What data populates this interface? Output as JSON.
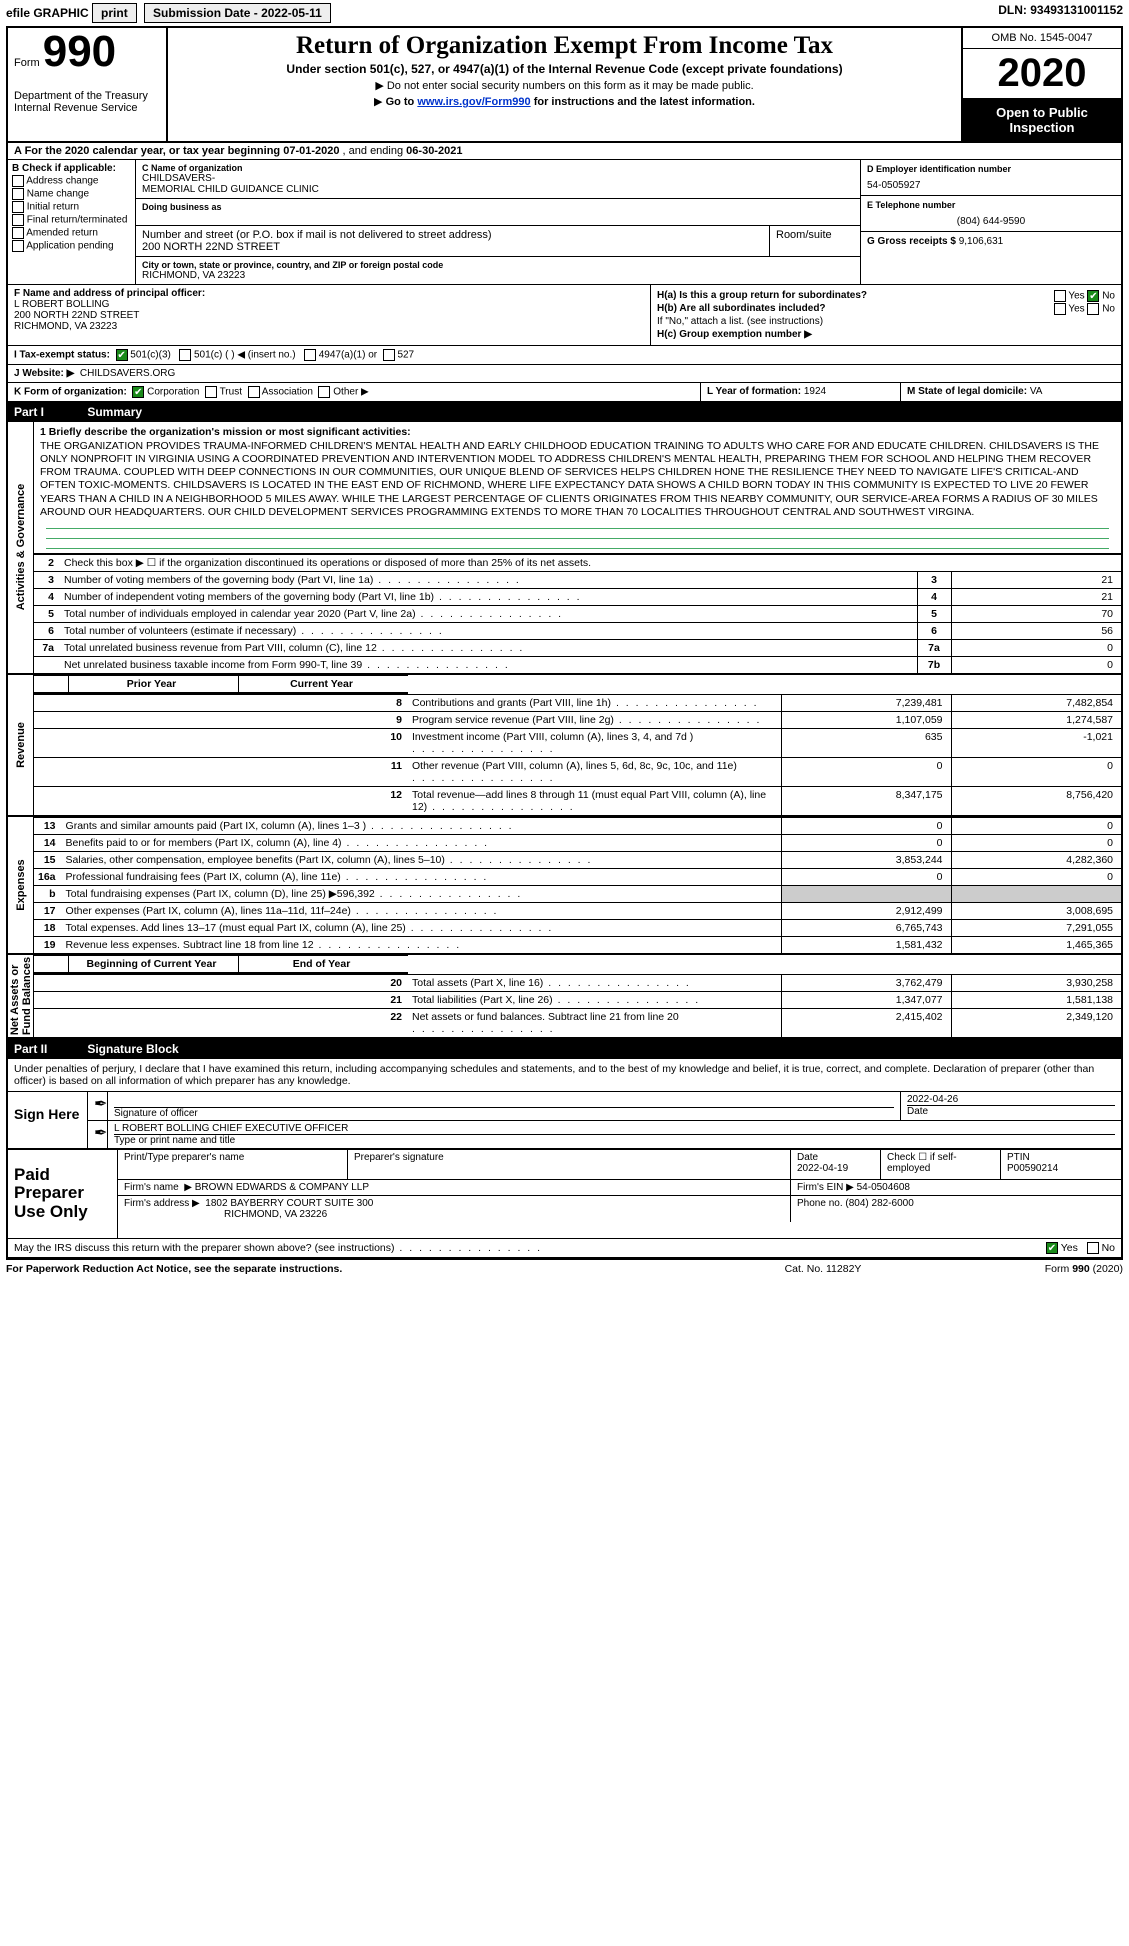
{
  "topbar": {
    "efile": "efile GRAPHIC",
    "print": "print",
    "submission_label": "Submission Date - 2022-05-11",
    "dln": "DLN: 93493131001152"
  },
  "header": {
    "form_word": "Form",
    "form_no": "990",
    "dept": "Department of the Treasury\nInternal Revenue Service",
    "title": "Return of Organization Exempt From Income Tax",
    "subtitle": "Under section 501(c), 527, or 4947(a)(1) of the Internal Revenue Code (except private foundations)",
    "note1": "Do not enter social security numbers on this form as it may be made public.",
    "note2_pre": "Go to ",
    "note2_link": "www.irs.gov/Form990",
    "note2_post": " for instructions and the latest information.",
    "omb": "OMB No. 1545-0047",
    "year": "2020",
    "open": "Open to Public Inspection"
  },
  "taxyear": {
    "prefix": "A  For the 2020 calendar year, or tax year beginning ",
    "begin": "07-01-2020",
    "mid": " , and ending ",
    "end": "06-30-2021"
  },
  "B": {
    "label": "B Check if applicable:",
    "opts": [
      "Address change",
      "Name change",
      "Initial return",
      "Final return/terminated",
      "Amended return",
      "Application pending"
    ]
  },
  "C": {
    "name_lbl": "C Name of organization",
    "name1": "CHILDSAVERS-",
    "name2": "MEMORIAL CHILD GUIDANCE CLINIC",
    "dba_lbl": "Doing business as",
    "street_lbl": "Number and street (or P.O. box if mail is not delivered to street address)",
    "room_lbl": "Room/suite",
    "street": "200 NORTH 22ND STREET",
    "city_lbl": "City or town, state or province, country, and ZIP or foreign postal code",
    "city": "RICHMOND, VA  23223"
  },
  "D": {
    "lbl": "D Employer identification number",
    "val": "54-0505927"
  },
  "E": {
    "lbl": "E Telephone number",
    "val": "(804) 644-9590"
  },
  "G": {
    "lbl": "G Gross receipts $",
    "val": "9,106,631"
  },
  "F": {
    "lbl": "F  Name and address of principal officer:",
    "name": "L ROBERT BOLLING",
    "addr1": "200 NORTH 22ND STREET",
    "addr2": "RICHMOND, VA  23223"
  },
  "H": {
    "a": "H(a)  Is this a group return for subordinates?",
    "a_yes": "Yes",
    "a_no": "No",
    "b": "H(b)  Are all subordinates included?",
    "b_yes": "Yes",
    "b_no": "No",
    "b_note": "If \"No,\" attach a list. (see instructions)",
    "c": "H(c)  Group exemption number ▶"
  },
  "I": {
    "lbl": "I   Tax-exempt status:",
    "o1": "501(c)(3)",
    "o2": "501(c) (  ) ◀ (insert no.)",
    "o3": "4947(a)(1) or",
    "o4": "527"
  },
  "J": {
    "lbl": "J  Website: ▶",
    "val": "CHILDSAVERS.ORG"
  },
  "K": {
    "lbl": "K Form of organization:",
    "o1": "Corporation",
    "o2": "Trust",
    "o3": "Association",
    "o4": "Other ▶"
  },
  "L": {
    "lbl": "L Year of formation:",
    "val": "1924"
  },
  "M": {
    "lbl": "M State of legal domicile:",
    "val": "VA"
  },
  "partI": {
    "num": "Part I",
    "title": "Summary"
  },
  "mission": {
    "lbl": "1   Briefly describe the organization's mission or most significant activities:",
    "text": "THE ORGANIZATION PROVIDES TRAUMA-INFORMED CHILDREN'S MENTAL HEALTH AND EARLY CHILDHOOD EDUCATION TRAINING TO ADULTS WHO CARE FOR AND EDUCATE CHILDREN. CHILDSAVERS IS THE ONLY NONPROFIT IN VIRGINIA USING A COORDINATED PREVENTION AND INTERVENTION MODEL TO ADDRESS CHILDREN'S MENTAL HEALTH, PREPARING THEM FOR SCHOOL AND HELPING THEM RECOVER FROM TRAUMA. COUPLED WITH DEEP CONNECTIONS IN OUR COMMUNITIES, OUR UNIQUE BLEND OF SERVICES HELPS CHILDREN HONE THE RESILIENCE THEY NEED TO NAVIGATE LIFE'S CRITICAL-AND OFTEN TOXIC-MOMENTS. CHILDSAVERS IS LOCATED IN THE EAST END OF RICHMOND, WHERE LIFE EXPECTANCY DATA SHOWS A CHILD BORN TODAY IN THIS COMMUNITY IS EXPECTED TO LIVE 20 FEWER YEARS THAN A CHILD IN A NEIGHBORHOOD 5 MILES AWAY. WHILE THE LARGEST PERCENTAGE OF CLIENTS ORIGINATES FROM THIS NEARBY COMMUNITY, OUR SERVICE-AREA FORMS A RADIUS OF 30 MILES AROUND OUR HEADQUARTERS. OUR CHILD DEVELOPMENT SERVICES PROGRAMMING EXTENDS TO MORE THAN 70 LOCALITIES THROUGHOUT CENTRAL AND SOUTHWEST VIRGINA."
  },
  "gov": {
    "l2": "Check this box ▶ ☐ if the organization discontinued its operations or disposed of more than 25% of its net assets.",
    "rows": [
      {
        "n": "3",
        "d": "Number of voting members of the governing body (Part VI, line 1a)",
        "b": "3",
        "v": "21"
      },
      {
        "n": "4",
        "d": "Number of independent voting members of the governing body (Part VI, line 1b)",
        "b": "4",
        "v": "21"
      },
      {
        "n": "5",
        "d": "Total number of individuals employed in calendar year 2020 (Part V, line 2a)",
        "b": "5",
        "v": "70"
      },
      {
        "n": "6",
        "d": "Total number of volunteers (estimate if necessary)",
        "b": "6",
        "v": "56"
      },
      {
        "n": "7a",
        "d": "Total unrelated business revenue from Part VIII, column (C), line 12",
        "b": "7a",
        "v": "0"
      },
      {
        "n": "",
        "d": "Net unrelated business taxable income from Form 990-T, line 39",
        "b": "7b",
        "v": "0"
      }
    ]
  },
  "rev": {
    "hdr_prior": "Prior Year",
    "hdr_curr": "Current Year",
    "rows": [
      {
        "n": "8",
        "d": "Contributions and grants (Part VIII, line 1h)",
        "p": "7,239,481",
        "c": "7,482,854"
      },
      {
        "n": "9",
        "d": "Program service revenue (Part VIII, line 2g)",
        "p": "1,107,059",
        "c": "1,274,587"
      },
      {
        "n": "10",
        "d": "Investment income (Part VIII, column (A), lines 3, 4, and 7d )",
        "p": "635",
        "c": "-1,021"
      },
      {
        "n": "11",
        "d": "Other revenue (Part VIII, column (A), lines 5, 6d, 8c, 9c, 10c, and 11e)",
        "p": "0",
        "c": "0"
      },
      {
        "n": "12",
        "d": "Total revenue—add lines 8 through 11 (must equal Part VIII, column (A), line 12)",
        "p": "8,347,175",
        "c": "8,756,420"
      }
    ]
  },
  "exp": {
    "rows": [
      {
        "n": "13",
        "d": "Grants and similar amounts paid (Part IX, column (A), lines 1–3 )",
        "p": "0",
        "c": "0"
      },
      {
        "n": "14",
        "d": "Benefits paid to or for members (Part IX, column (A), line 4)",
        "p": "0",
        "c": "0"
      },
      {
        "n": "15",
        "d": "Salaries, other compensation, employee benefits (Part IX, column (A), lines 5–10)",
        "p": "3,853,244",
        "c": "4,282,360"
      },
      {
        "n": "16a",
        "d": "Professional fundraising fees (Part IX, column (A), line 11e)",
        "p": "0",
        "c": "0"
      },
      {
        "n": "b",
        "d": "Total fundraising expenses (Part IX, column (D), line 25) ▶596,392",
        "p": "",
        "c": "",
        "shade": true
      },
      {
        "n": "17",
        "d": "Other expenses (Part IX, column (A), lines 11a–11d, 11f–24e)",
        "p": "2,912,499",
        "c": "3,008,695"
      },
      {
        "n": "18",
        "d": "Total expenses. Add lines 13–17 (must equal Part IX, column (A), line 25)",
        "p": "6,765,743",
        "c": "7,291,055"
      },
      {
        "n": "19",
        "d": "Revenue less expenses. Subtract line 18 from line 12",
        "p": "1,581,432",
        "c": "1,465,365"
      }
    ]
  },
  "net": {
    "hdr_b": "Beginning of Current Year",
    "hdr_e": "End of Year",
    "rows": [
      {
        "n": "20",
        "d": "Total assets (Part X, line 16)",
        "p": "3,762,479",
        "c": "3,930,258"
      },
      {
        "n": "21",
        "d": "Total liabilities (Part X, line 26)",
        "p": "1,347,077",
        "c": "1,581,138"
      },
      {
        "n": "22",
        "d": "Net assets or fund balances. Subtract line 21 from line 20",
        "p": "2,415,402",
        "c": "2,349,120"
      }
    ]
  },
  "vlabels": {
    "ag": "Activities & Governance",
    "rev": "Revenue",
    "exp": "Expenses",
    "net": "Net Assets or\nFund Balances"
  },
  "partII": {
    "num": "Part II",
    "title": "Signature Block"
  },
  "sig": {
    "decl": "Under penalties of perjury, I declare that I have examined this return, including accompanying schedules and statements, and to the best of my knowledge and belief, it is true, correct, and complete. Declaration of preparer (other than officer) is based on all information of which preparer has any knowledge.",
    "here": "Sign Here",
    "sig_off": "Signature of officer",
    "date_lbl": "Date",
    "date": "2022-04-26",
    "name": "L ROBERT BOLLING  CHIEF EXECUTIVE OFFICER",
    "name_lbl": "Type or print name and title"
  },
  "paid": {
    "lbl": "Paid Preparer Use Only",
    "pt_lbl": "Print/Type preparer's name",
    "ps_lbl": "Preparer's signature",
    "pdate_lbl": "Date",
    "pdate": "2022-04-19",
    "self_lbl": "Check ☐ if self-employed",
    "ptin_lbl": "PTIN",
    "ptin": "P00590214",
    "firm_name_lbl": "Firm's name",
    "firm_name": "BROWN EDWARDS & COMPANY LLP",
    "firm_ein_lbl": "Firm's EIN ▶",
    "firm_ein": "54-0504608",
    "firm_addr_lbl": "Firm's address ▶",
    "firm_addr1": "1802 BAYBERRY COURT SUITE 300",
    "firm_addr2": "RICHMOND, VA  23226",
    "phone_lbl": "Phone no.",
    "phone": "(804) 282-6000"
  },
  "discuss": {
    "q": "May the IRS discuss this return with the preparer shown above? (see instructions)",
    "yes": "Yes",
    "no": "No"
  },
  "footer": {
    "l": "For Paperwork Reduction Act Notice, see the separate instructions.",
    "m": "Cat. No. 11282Y",
    "r": "Form 990 (2020)"
  },
  "colors": {
    "accent": "#1a8a1a",
    "link": "#0033cc"
  }
}
